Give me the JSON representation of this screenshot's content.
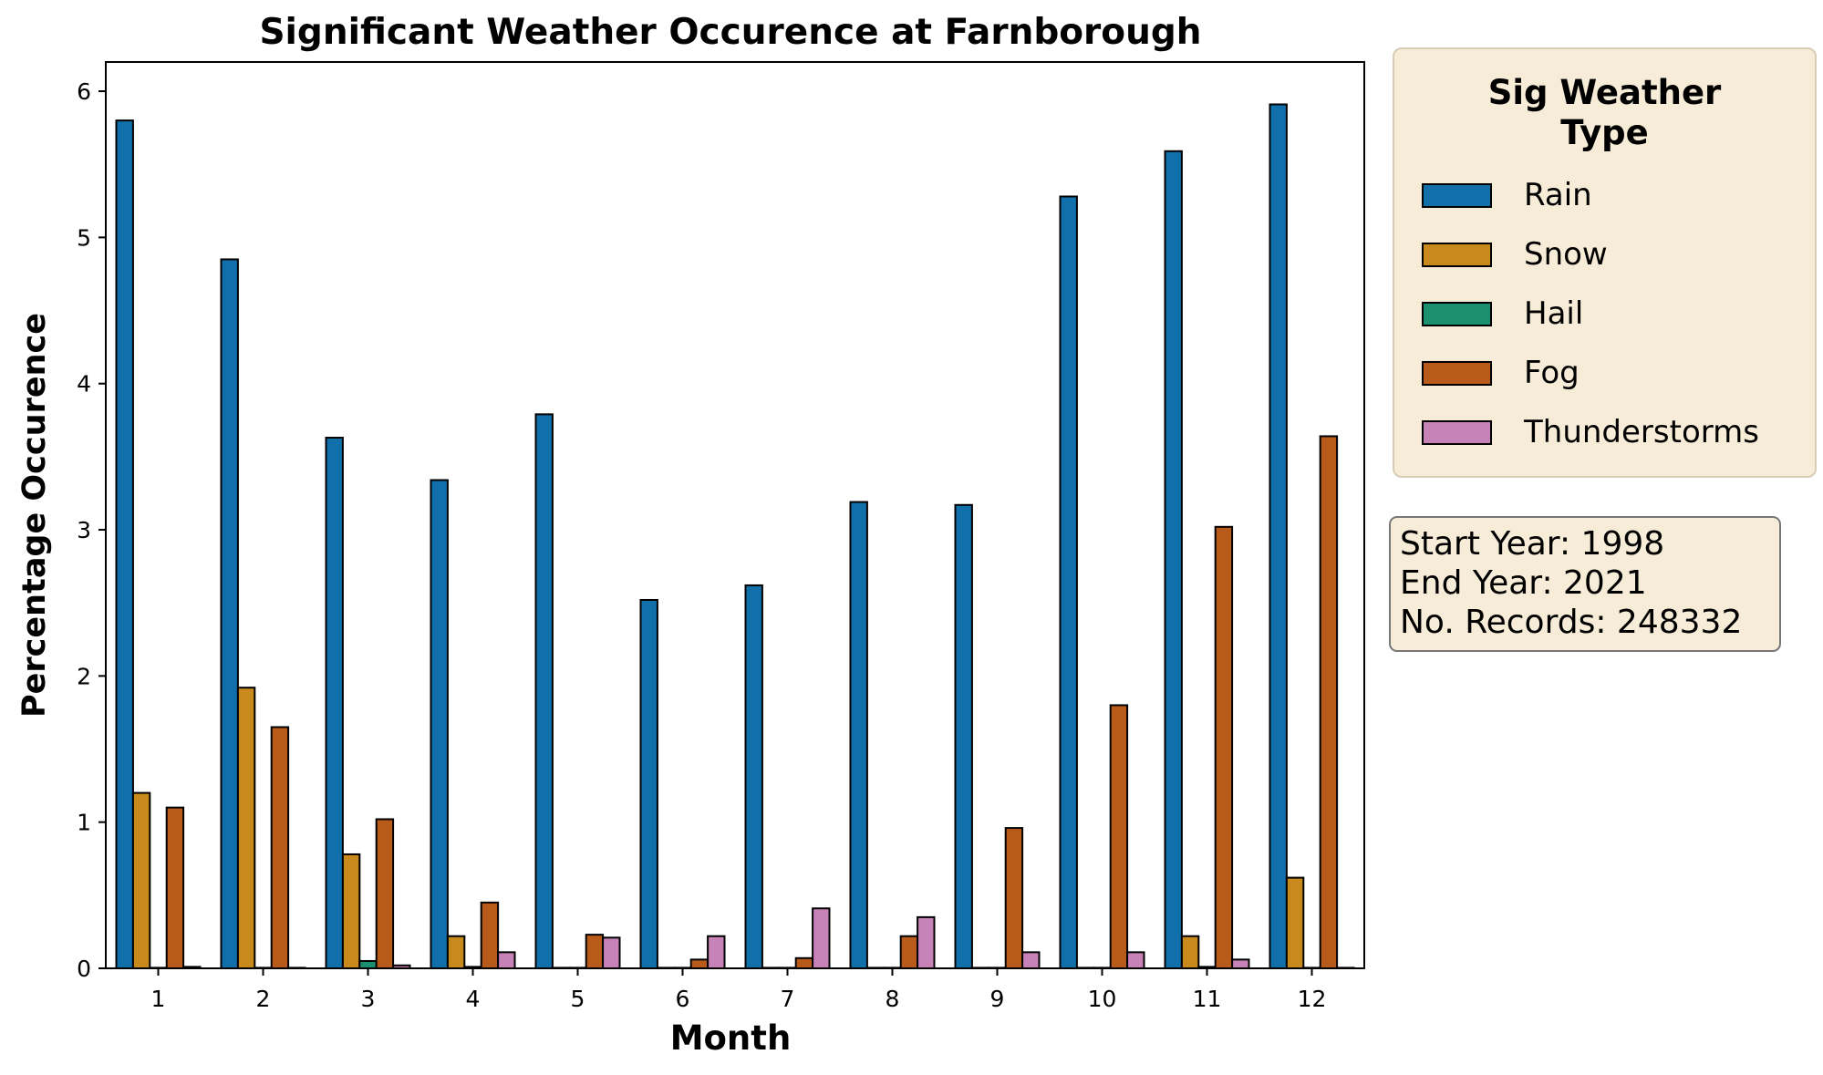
{
  "chart_data": {
    "type": "bar",
    "title": "Significant Weather Occurence at Farnborough",
    "xlabel": "Month",
    "ylabel": "Percentage Occurence",
    "categories": [
      "1",
      "2",
      "3",
      "4",
      "5",
      "6",
      "7",
      "8",
      "9",
      "10",
      "11",
      "12"
    ],
    "ylim": [
      0,
      6.2
    ],
    "yticks": [
      "0",
      "1",
      "2",
      "3",
      "4",
      "5",
      "6"
    ],
    "grid": false,
    "legend_placement": "outside-right",
    "series": [
      {
        "name": "Rain",
        "color": "#1170aa",
        "values": [
          5.8,
          4.85,
          3.63,
          3.34,
          3.79,
          2.52,
          2.62,
          3.19,
          3.17,
          5.28,
          5.59,
          5.91
        ]
      },
      {
        "name": "Snow",
        "color": "#c88a1c",
        "values": [
          1.2,
          1.92,
          0.78,
          0.22,
          0.0,
          0.0,
          0.0,
          0.0,
          0.0,
          0.0,
          0.22,
          0.62
        ]
      },
      {
        "name": "Hail",
        "color": "#1a9070",
        "values": [
          0.0,
          0.0,
          0.05,
          0.01,
          0.0,
          0.0,
          0.0,
          0.0,
          0.0,
          0.0,
          0.01,
          0.0
        ]
      },
      {
        "name": "Fog",
        "color": "#b85a1a",
        "values": [
          1.1,
          1.65,
          1.02,
          0.45,
          0.23,
          0.06,
          0.07,
          0.22,
          0.96,
          1.8,
          3.02,
          3.64
        ]
      },
      {
        "name": "Thunderstorms",
        "color": "#c782b8",
        "values": [
          0.01,
          0.0,
          0.02,
          0.11,
          0.21,
          0.22,
          0.41,
          0.35,
          0.11,
          0.11,
          0.06,
          0.0
        ]
      }
    ]
  },
  "legend": {
    "title": "Sig Weather\nType"
  },
  "info": {
    "start_year": "Start Year: 1998",
    "end_year": "End Year: 2021",
    "records": "No. Records: 248332"
  }
}
